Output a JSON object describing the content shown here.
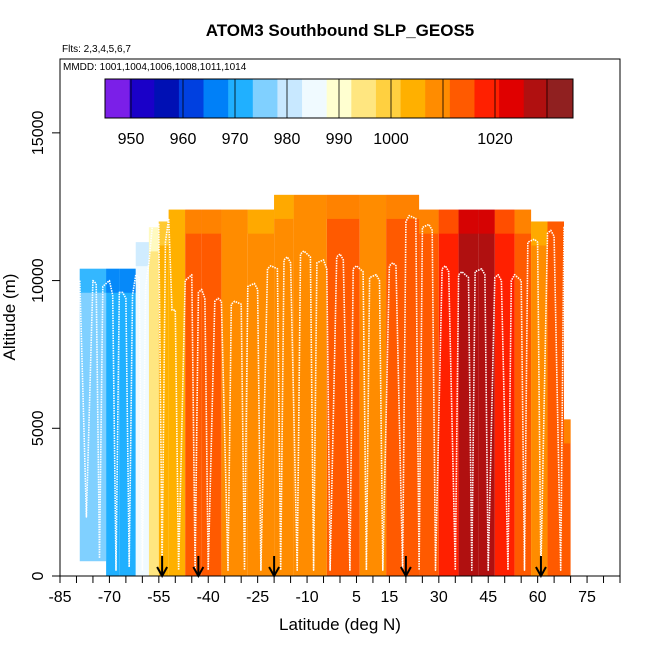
{
  "chart_data": {
    "type": "heatmap",
    "title": "ATOM3 Southbound SLP_GEOS5",
    "flights_note": "Flts: 2,3,4,5,6,7",
    "dates_note": "MMDD: 1001,1004,1006,1008,1011,1014",
    "xlabel": "Latitude (deg N)",
    "ylabel": "Altitude (m)",
    "xlim": [
      -85,
      85
    ],
    "ylim": [
      0,
      17500
    ],
    "x_ticks": [
      -85,
      -70,
      -55,
      -40,
      -25,
      -10,
      5,
      15,
      30,
      45,
      60,
      75
    ],
    "x_tick_labels": [
      "-85",
      "-70",
      "-55",
      "-40",
      "-25",
      "-10",
      "5",
      "15",
      "30",
      "45",
      "60",
      "75"
    ],
    "y_ticks": [
      0,
      5000,
      10000,
      15000
    ],
    "y_tick_labels": [
      "0",
      "5000",
      "10000",
      "15000"
    ],
    "colorbar": {
      "label_values": [
        950,
        960,
        970,
        980,
        990,
        1000,
        1020
      ],
      "labels": [
        "950",
        "960",
        "970",
        "980",
        "990",
        "1000",
        "1020"
      ],
      "colors": [
        "#7b1fe8",
        "#1a00c8",
        "#0010b4",
        "#0040e0",
        "#0080f8",
        "#20b0ff",
        "#80d0ff",
        "#c8e8ff",
        "#f0faff",
        "#ffffd0",
        "#ffe680",
        "#ffd040",
        "#ffb000",
        "#ff8c00",
        "#ff5a00",
        "#ff2000",
        "#e00000",
        "#b01010",
        "#902020"
      ]
    },
    "columns": [
      {
        "lat_start": -79,
        "lat_end": -71,
        "alt_top": 10400,
        "alt_bottom": 500,
        "value": 975
      },
      {
        "lat_start": -71,
        "lat_end": -67,
        "alt_top": 10400,
        "alt_bottom": 0,
        "value": 972
      },
      {
        "lat_start": -67,
        "lat_end": -62,
        "alt_top": 10400,
        "alt_bottom": 0,
        "value": 970
      },
      {
        "lat_start": -62,
        "lat_end": -58,
        "alt_top": 11300,
        "alt_bottom": 0,
        "value": 985
      },
      {
        "lat_start": -58,
        "lat_end": -55,
        "alt_top": 11800,
        "alt_bottom": 0,
        "value": 996
      },
      {
        "lat_start": -55,
        "lat_end": -52,
        "alt_top": 12000,
        "alt_bottom": 0,
        "value": 1003
      },
      {
        "lat_start": -52,
        "lat_end": -47,
        "alt_top": 12400,
        "alt_bottom": 0,
        "value": 1006
      },
      {
        "lat_start": -47,
        "lat_end": -42,
        "alt_top": 12400,
        "alt_bottom": 0,
        "value": 1012
      },
      {
        "lat_start": -42,
        "lat_end": -36,
        "alt_top": 12400,
        "alt_bottom": 0,
        "value": 1014
      },
      {
        "lat_start": -36,
        "lat_end": -28,
        "alt_top": 12400,
        "alt_bottom": 0,
        "value": 1011
      },
      {
        "lat_start": -28,
        "lat_end": -20,
        "alt_top": 12400,
        "alt_bottom": 0,
        "value": 1010
      },
      {
        "lat_start": -20,
        "lat_end": -14,
        "alt_top": 12900,
        "alt_bottom": 0,
        "value": 1009
      },
      {
        "lat_start": -14,
        "lat_end": -4,
        "alt_top": 12900,
        "alt_bottom": 0,
        "value": 1011
      },
      {
        "lat_start": -4,
        "lat_end": 6,
        "alt_top": 12900,
        "alt_bottom": 0,
        "value": 1013
      },
      {
        "lat_start": 6,
        "lat_end": 14,
        "alt_top": 12900,
        "alt_bottom": 0,
        "value": 1011
      },
      {
        "lat_start": 14,
        "lat_end": 24,
        "alt_top": 12900,
        "alt_bottom": 0,
        "value": 1014
      },
      {
        "lat_start": 24,
        "lat_end": 30,
        "alt_top": 12400,
        "alt_bottom": 0,
        "value": 1013
      },
      {
        "lat_start": 30,
        "lat_end": 36,
        "alt_top": 12400,
        "alt_bottom": 0,
        "value": 1018
      },
      {
        "lat_start": 36,
        "lat_end": 42,
        "alt_top": 12400,
        "alt_bottom": 0,
        "value": 1028
      },
      {
        "lat_start": 42,
        "lat_end": 47,
        "alt_top": 12400,
        "alt_bottom": 0,
        "value": 1026
      },
      {
        "lat_start": 47,
        "lat_end": 53,
        "alt_top": 12400,
        "alt_bottom": 0,
        "value": 1020
      },
      {
        "lat_start": 53,
        "lat_end": 58,
        "alt_top": 12400,
        "alt_bottom": 0,
        "value": 1012
      },
      {
        "lat_start": 58,
        "lat_end": 63,
        "alt_top": 12000,
        "alt_bottom": 0,
        "value": 1008
      },
      {
        "lat_start": 63,
        "lat_end": 68,
        "alt_top": 12000,
        "alt_bottom": 0,
        "value": 1016
      },
      {
        "lat_start": 68,
        "lat_end": 70,
        "alt_top": 5300,
        "alt_bottom": 0,
        "value": 1013
      }
    ],
    "flight_track": {
      "lats": [
        -79,
        -77,
        -75,
        -74,
        -73,
        -72,
        -70,
        -69,
        -68,
        -67,
        -66,
        -65,
        -64,
        -63,
        -62,
        -61,
        -60,
        -59,
        -58,
        -57,
        -56,
        -55,
        -54,
        -53,
        -52,
        -51,
        -50,
        -49,
        -47,
        -45,
        -44,
        -43,
        -42,
        -41,
        -40,
        -38,
        -37,
        -36,
        -34,
        -33,
        -32,
        -30,
        -29,
        -28,
        -26,
        -25,
        -24,
        -22,
        -21,
        -19,
        -18,
        -17,
        -16,
        -15,
        -13,
        -12,
        -11,
        -9,
        -8,
        -7,
        -5,
        -4,
        -3,
        -1,
        0,
        1,
        3,
        4,
        5,
        7,
        8,
        9,
        11,
        12,
        13,
        15,
        16,
        17,
        19,
        20,
        21,
        23,
        24,
        25,
        27,
        28,
        29,
        31,
        32,
        33,
        35,
        36,
        37,
        39,
        40,
        41,
        43,
        44,
        45,
        47,
        48,
        49,
        51,
        52,
        53,
        55,
        56,
        57,
        59,
        60,
        61,
        63,
        64,
        65,
        67,
        68,
        69
      ],
      "alts": [
        10000,
        2000,
        10000,
        9900,
        600,
        9800,
        10000,
        9500,
        200,
        9600,
        9600,
        9400,
        300,
        9500,
        10200,
        10100,
        200,
        9800,
        10600,
        11800,
        12000,
        11900,
        300,
        11300,
        12100,
        9000,
        9000,
        200,
        10000,
        10200,
        200,
        9600,
        9700,
        9400,
        200,
        9300,
        9400,
        9300,
        200,
        9200,
        9300,
        9200,
        200,
        9800,
        9900,
        9700,
        200,
        10400,
        10500,
        10400,
        200,
        10700,
        10800,
        10600,
        200,
        10900,
        11000,
        10800,
        200,
        10600,
        10700,
        10400,
        200,
        10800,
        10900,
        10700,
        200,
        10400,
        10500,
        10300,
        200,
        10100,
        10200,
        10000,
        200,
        10500,
        10600,
        10500,
        200,
        12000,
        12200,
        12100,
        200,
        11800,
        11900,
        11700,
        200,
        10400,
        10500,
        10300,
        200,
        10200,
        10300,
        10100,
        200,
        10300,
        10400,
        10200,
        200,
        10100,
        10200,
        10000,
        200,
        10000,
        10200,
        10000,
        200,
        11300,
        11400,
        11300,
        200,
        11600,
        11700,
        11500,
        200,
        11800,
        11900,
        11800,
        200
      ]
    },
    "arrow_lats": [
      -54,
      -43,
      -20,
      20,
      61
    ]
  }
}
